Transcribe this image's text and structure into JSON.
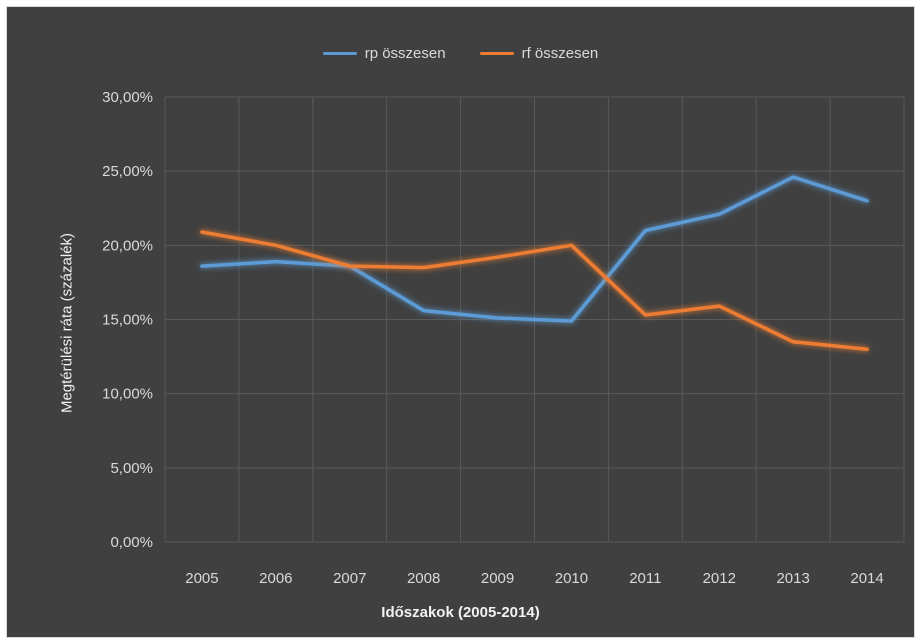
{
  "chart_data": {
    "type": "line",
    "title": "",
    "xlabel": "Időszakok (2005-2014)",
    "ylabel": "Megtérülési ráta (százalék)",
    "categories": [
      "2005",
      "2006",
      "2007",
      "2008",
      "2009",
      "2010",
      "2011",
      "2012",
      "2013",
      "2014"
    ],
    "series": [
      {
        "name": "rp összesen",
        "color": "#5b9bd5",
        "values": [
          18.6,
          18.9,
          18.6,
          15.6,
          15.1,
          14.9,
          21.0,
          22.1,
          24.6,
          23.0
        ]
      },
      {
        "name": "rf összesen",
        "color": "#ed7d31",
        "values": [
          20.9,
          20.0,
          18.6,
          18.5,
          19.2,
          20.0,
          15.3,
          15.9,
          13.5,
          13.0
        ]
      }
    ],
    "ylim": [
      0,
      30
    ],
    "yticks": [
      "0,00%",
      "5,00%",
      "10,00%",
      "15,00%",
      "20,00%",
      "25,00%",
      "30,00%"
    ],
    "grid": true,
    "legend_position": "top-center"
  },
  "colors": {
    "background": "#404040",
    "grid": "#595959",
    "text": "#d9d9d9"
  }
}
